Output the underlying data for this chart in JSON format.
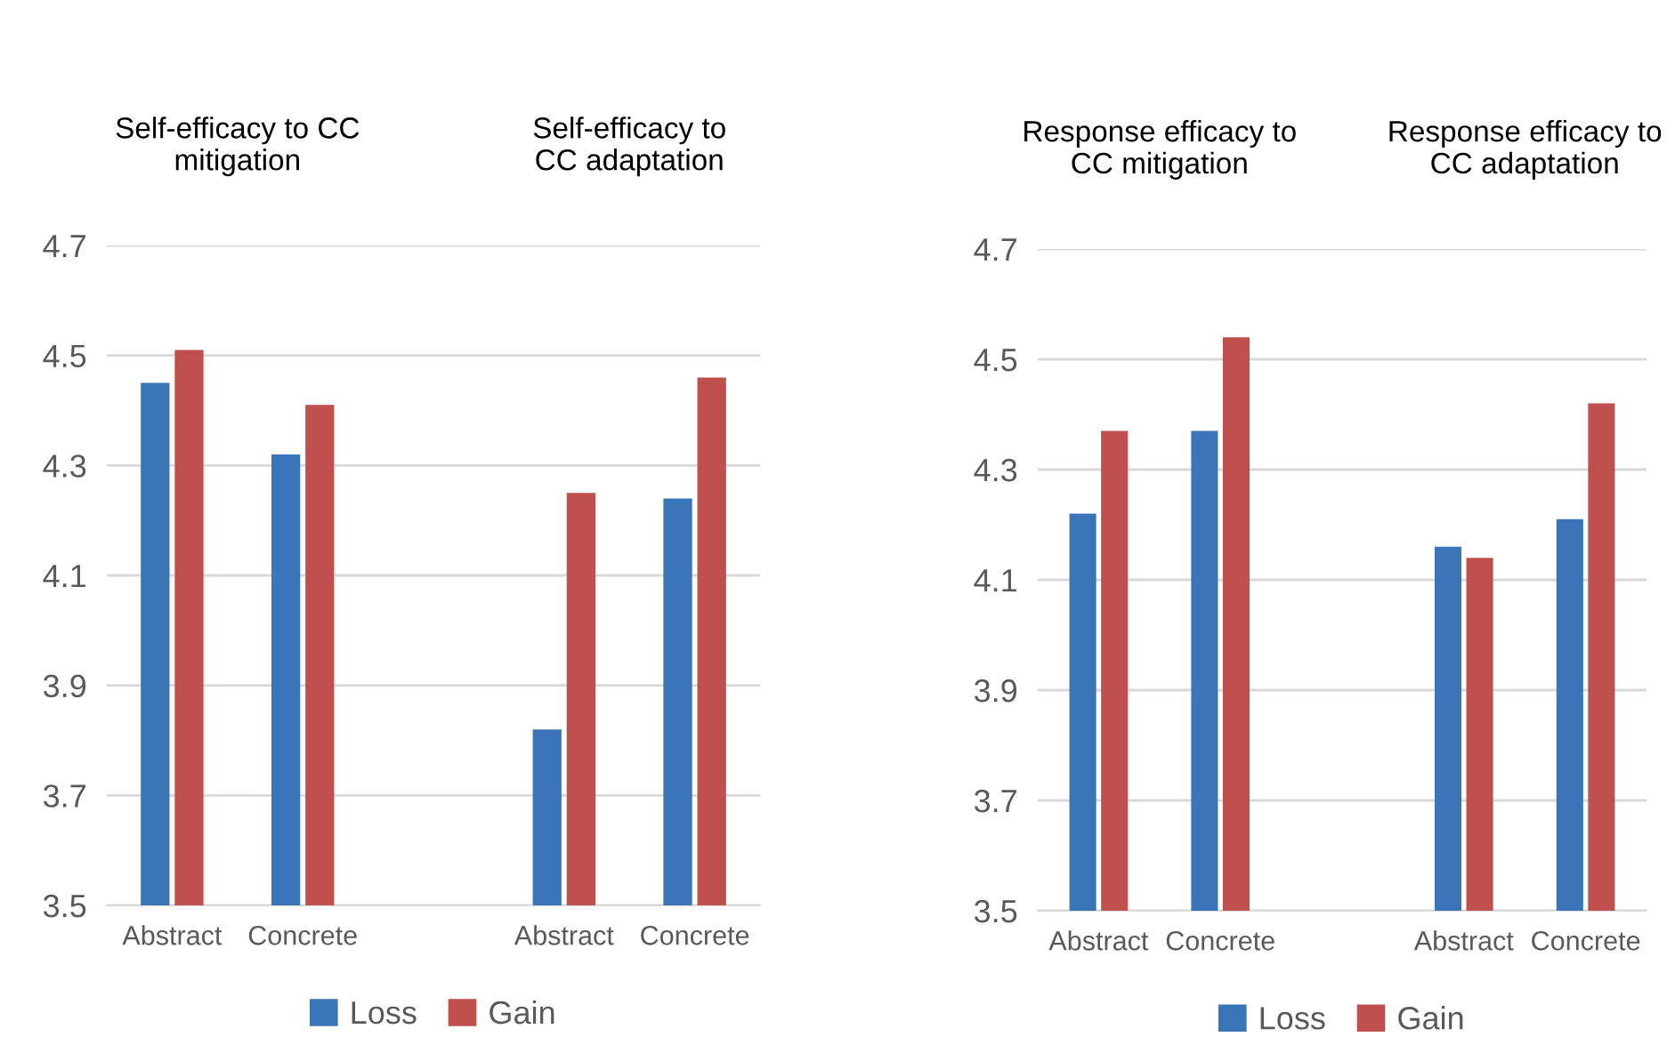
{
  "chart_data": [
    {
      "type": "bar",
      "categories": [
        "Abstract",
        "Concrete",
        null,
        "Abstract",
        "Concrete"
      ],
      "annotations": [
        "Self-efficacy to CC\nmitigation",
        "Self-efficacy to\nCC adaptation"
      ],
      "series": [
        {
          "name": "Loss",
          "color": "#3a75b7",
          "values": [
            4.45,
            4.32,
            null,
            3.82,
            4.24
          ]
        },
        {
          "name": "Gain",
          "color": "#c0504d",
          "values": [
            4.51,
            4.41,
            null,
            4.25,
            4.46
          ]
        }
      ],
      "ylim": [
        3.5,
        4.7
      ],
      "yticks": [
        3.5,
        3.7,
        3.9,
        4.1,
        4.3,
        4.5,
        4.7
      ],
      "grid": "y",
      "legend": "bottom"
    },
    {
      "type": "bar",
      "categories": [
        "Abstract",
        "Concrete",
        null,
        "Abstract",
        "Concrete"
      ],
      "annotations": [
        "Response efficacy to\nCC mitigation",
        "Response efficacy to\nCC adaptation"
      ],
      "series": [
        {
          "name": "Loss",
          "color": "#3a75b7",
          "values": [
            4.22,
            4.37,
            null,
            4.16,
            4.21
          ]
        },
        {
          "name": "Gain",
          "color": "#c0504d",
          "values": [
            4.37,
            4.54,
            null,
            4.14,
            4.42
          ]
        }
      ],
      "ylim": [
        3.5,
        4.7
      ],
      "yticks": [
        3.5,
        3.7,
        3.9,
        4.1,
        4.3,
        4.5,
        4.7
      ],
      "grid": "y",
      "legend": "bottom"
    }
  ]
}
